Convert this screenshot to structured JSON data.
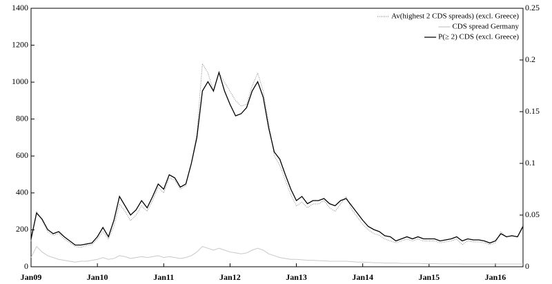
{
  "chart_data": {
    "type": "line",
    "categories": [
      "Jan09",
      null,
      null,
      null,
      null,
      null,
      null,
      null,
      null,
      null,
      null,
      null,
      "Jan10",
      null,
      null,
      null,
      null,
      null,
      null,
      null,
      null,
      null,
      null,
      null,
      "Jan11",
      null,
      null,
      null,
      null,
      null,
      null,
      null,
      null,
      null,
      null,
      null,
      "Jan12",
      null,
      null,
      null,
      null,
      null,
      null,
      null,
      null,
      null,
      null,
      null,
      "Jan13",
      null,
      null,
      null,
      null,
      null,
      null,
      null,
      null,
      null,
      null,
      null,
      "Jan14",
      null,
      null,
      null,
      null,
      null,
      null,
      null,
      null,
      null,
      null,
      null,
      "Jan15",
      null,
      null,
      null,
      null,
      null,
      null,
      null,
      null,
      null,
      null,
      null,
      "Jan16",
      null,
      null,
      null,
      null,
      null
    ],
    "series": [
      {
        "name": "Av(highest 2 CDS spreads) (excl. Greece)",
        "color": "#888888",
        "dash": "1,1.5",
        "values": [
          140,
          300,
          250,
          190,
          170,
          180,
          150,
          130,
          110,
          105,
          115,
          120,
          150,
          190,
          150,
          220,
          340,
          300,
          250,
          280,
          330,
          300,
          360,
          430,
          400,
          480,
          470,
          420,
          440,
          560,
          720,
          1100,
          1050,
          950,
          1050,
          1000,
          950,
          900,
          870,
          880,
          980,
          1050,
          950,
          780,
          600,
          550,
          470,
          390,
          330,
          350,
          320,
          340,
          340,
          360,
          320,
          300,
          340,
          380,
          310,
          270,
          230,
          200,
          180,
          170,
          150,
          140,
          130,
          140,
          150,
          140,
          150,
          140,
          140,
          140,
          130,
          135,
          140,
          150,
          120,
          140,
          135,
          135,
          130,
          120,
          130,
          190,
          160,
          170,
          160,
          230
        ]
      },
      {
        "name": "CDS spread Germany",
        "color": "#c8c8c8",
        "values": [
          50,
          110,
          80,
          60,
          50,
          40,
          35,
          30,
          25,
          30,
          30,
          35,
          40,
          50,
          40,
          45,
          60,
          55,
          45,
          50,
          55,
          50,
          55,
          60,
          50,
          55,
          50,
          45,
          50,
          60,
          80,
          110,
          100,
          90,
          100,
          90,
          80,
          75,
          70,
          75,
          90,
          100,
          90,
          70,
          60,
          50,
          45,
          40,
          40,
          38,
          35,
          35,
          33,
          32,
          30,
          30,
          30,
          30,
          28,
          25,
          25,
          24,
          22,
          22,
          20,
          20,
          20,
          18,
          18,
          18,
          18,
          17,
          17,
          17,
          16,
          16,
          16,
          16,
          15,
          15,
          15,
          15,
          15,
          15,
          15,
          15,
          15,
          15,
          15,
          15
        ]
      },
      {
        "name": "P(≥ 2) CDS (excl. Greece)",
        "color": "#000000",
        "axis": "y2",
        "values": [
          0.027,
          0.052,
          0.046,
          0.036,
          0.032,
          0.034,
          0.029,
          0.025,
          0.021,
          0.021,
          0.022,
          0.023,
          0.029,
          0.038,
          0.029,
          0.045,
          0.068,
          0.059,
          0.05,
          0.055,
          0.064,
          0.057,
          0.068,
          0.08,
          0.075,
          0.089,
          0.086,
          0.077,
          0.08,
          0.1,
          0.125,
          0.17,
          0.179,
          0.17,
          0.188,
          0.17,
          0.157,
          0.146,
          0.148,
          0.154,
          0.17,
          0.179,
          0.164,
          0.134,
          0.111,
          0.104,
          0.089,
          0.075,
          0.064,
          0.068,
          0.061,
          0.064,
          0.064,
          0.066,
          0.061,
          0.059,
          0.064,
          0.066,
          0.059,
          0.052,
          0.045,
          0.039,
          0.036,
          0.034,
          0.03,
          0.029,
          0.025,
          0.027,
          0.029,
          0.027,
          0.029,
          0.027,
          0.027,
          0.027,
          0.025,
          0.026,
          0.027,
          0.029,
          0.025,
          0.027,
          0.026,
          0.026,
          0.025,
          0.023,
          0.025,
          0.032,
          0.029,
          0.03,
          0.029,
          0.039
        ]
      }
    ],
    "ylim": [
      0,
      1400
    ],
    "yticks": [
      0,
      200,
      400,
      600,
      800,
      1000,
      1200,
      1400
    ],
    "y2lim": [
      0,
      0.25
    ],
    "y2ticks": [
      0,
      0.05,
      0.1,
      0.15,
      0.2,
      0.25
    ],
    "legend": "upper right"
  }
}
